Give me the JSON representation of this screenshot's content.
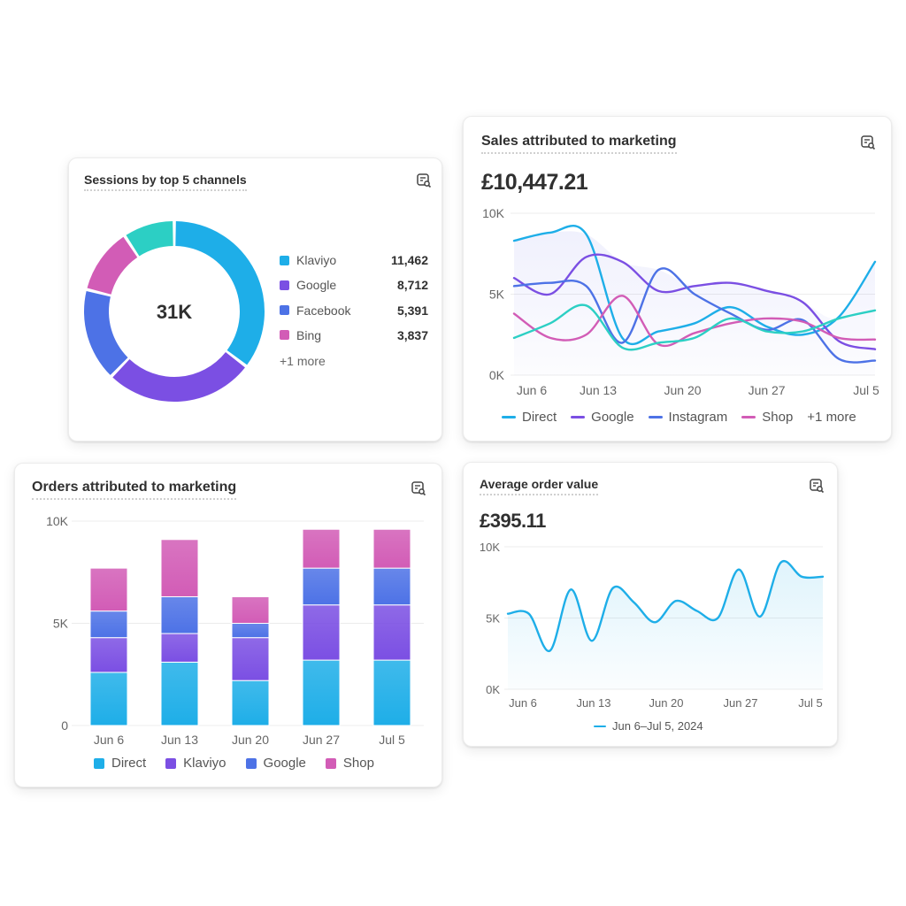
{
  "colors": {
    "cyan": "#1eaee8",
    "violet": "#7b4fe3",
    "blue": "#4d72e6",
    "pink": "#d25cb6",
    "teal": "#2ccfc4",
    "grid": "#ececec",
    "axis": "#666666"
  },
  "icons": {
    "card_action": "report-search-icon"
  },
  "sessions": {
    "title": "Sessions by top 5 channels",
    "center_value": "31K",
    "legend": [
      {
        "label": "Klaviyo",
        "value": "11,462",
        "color": "#1eaee8"
      },
      {
        "label": "Google",
        "value": "8,712",
        "color": "#7b4fe3"
      },
      {
        "label": "Facebook",
        "value": "5,391",
        "color": "#4d72e6"
      },
      {
        "label": "Bing",
        "value": "3,837",
        "color": "#d25cb6"
      }
    ],
    "more": "+1 more"
  },
  "sales": {
    "title": "Sales attributed to marketing",
    "total": "£10,447.21",
    "legend": [
      "Direct",
      "Google",
      "Instagram",
      "Shop"
    ],
    "more": "+1 more"
  },
  "orders": {
    "title": "Orders attributed to marketing",
    "legend": [
      "Direct",
      "Klaviyo",
      "Google",
      "Shop"
    ]
  },
  "aov": {
    "title": "Average order value",
    "total": "£395.11",
    "legend": "Jun 6–Jul 5, 2024"
  },
  "chart_data": [
    {
      "type": "pie",
      "title": "Sessions by top 5 channels",
      "center_label": "31K",
      "slices": [
        {
          "label": "Klaviyo",
          "value": 11462,
          "color": "#1eaee8"
        },
        {
          "label": "Google",
          "value": 8712,
          "color": "#7b4fe3"
        },
        {
          "label": "Facebook",
          "value": 5391,
          "color": "#4d72e6"
        },
        {
          "label": "Bing",
          "value": 3837,
          "color": "#d25cb6"
        },
        {
          "value": 3000,
          "color": "#2ccfc4"
        }
      ]
    },
    {
      "type": "line",
      "title": "Sales attributed to marketing",
      "x": [
        "Jun 6",
        "Jun 9",
        "Jun 12",
        "Jun 15",
        "Jun 18",
        "Jun 21",
        "Jun 24",
        "Jun 27",
        "Jun 30",
        "Jul 3",
        "Jul 5"
      ],
      "x_ticks": [
        "Jun 6",
        "Jun 13",
        "Jun 20",
        "Jun 27",
        "Jul 5"
      ],
      "y_ticks": [
        "0K",
        "5K",
        "10K"
      ],
      "ylim": [
        0,
        10000
      ],
      "grid": true,
      "series": [
        {
          "name": "Direct",
          "color": "#1eaee8",
          "values": [
            8300,
            8800,
            8700,
            2300,
            2700,
            3200,
            4200,
            3000,
            2500,
            3600,
            7000
          ]
        },
        {
          "name": "Google",
          "color": "#7b4fe3",
          "values": [
            6000,
            5000,
            7300,
            7000,
            5200,
            5500,
            5700,
            5200,
            4500,
            2100,
            1600
          ]
        },
        {
          "name": "Instagram",
          "color": "#4d72e6",
          "values": [
            5500,
            5700,
            5500,
            2000,
            6500,
            5000,
            3800,
            2800,
            3400,
            1000,
            900
          ]
        },
        {
          "name": "Shop",
          "color": "#d25cb6",
          "values": [
            3800,
            2300,
            2500,
            4900,
            1900,
            2600,
            3200,
            3500,
            3300,
            2300,
            2200
          ]
        },
        {
          "color": "#2ccfc4",
          "values": [
            2300,
            3200,
            4300,
            1700,
            2000,
            2300,
            3500,
            2700,
            2700,
            3500,
            4000
          ]
        }
      ]
    },
    {
      "type": "bar",
      "stacked": true,
      "title": "Orders attributed to marketing",
      "categories": [
        "Jun 6",
        "Jun 13",
        "Jun 20",
        "Jun 27",
        "Jul 5"
      ],
      "y_ticks": [
        "0",
        "5K",
        "10K"
      ],
      "ylim": [
        0,
        10000
      ],
      "grid": true,
      "series": [
        {
          "name": "Direct",
          "color": "#1eaee8",
          "values": [
            2600,
            3100,
            2200,
            3200,
            3200
          ]
        },
        {
          "name": "Klaviyo",
          "color": "#7b4fe3",
          "values": [
            1700,
            1400,
            2100,
            2700,
            2700
          ]
        },
        {
          "name": "Google",
          "color": "#4d72e6",
          "values": [
            1300,
            1800,
            700,
            1800,
            1800
          ]
        },
        {
          "name": "Shop",
          "color": "#d25cb6",
          "values": [
            2100,
            2800,
            1300,
            1900,
            1900
          ]
        }
      ]
    },
    {
      "type": "area",
      "title": "Average order value",
      "x_ticks": [
        "Jun 6",
        "Jun 13",
        "Jun 20",
        "Jun 27",
        "Jul 5"
      ],
      "y_ticks": [
        "0K",
        "5K",
        "10K"
      ],
      "ylim": [
        0,
        10000
      ],
      "grid": true,
      "series": [
        {
          "name": "Jun 6–Jul 5, 2024",
          "color": "#1eaee8",
          "values": [
            5300,
            5300,
            2700,
            7000,
            3400,
            7100,
            6100,
            4700,
            6200,
            5500,
            5000,
            8400,
            5100,
            8900,
            7900,
            7900
          ]
        }
      ]
    }
  ]
}
